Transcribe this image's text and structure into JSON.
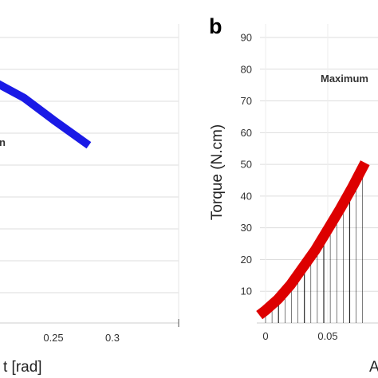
{
  "chart_data": [
    {
      "panel": "a",
      "type": "line",
      "xlabel": "t [rad]",
      "ylabel": "",
      "x_ticks": [
        "0.25",
        "0.3"
      ],
      "xlim": [
        0.0,
        0.35
      ],
      "annotation": "n",
      "grid": true,
      "series": [
        {
          "color": "#1a1ae6",
          "x": [
            0.175,
            0.2,
            0.225,
            0.25,
            0.28
          ],
          "y": [
            78.5,
            76,
            71,
            64,
            56
          ]
        }
      ]
    },
    {
      "panel": "b",
      "type": "line",
      "panel_label": "b",
      "xlabel": "A",
      "ylabel": "Torque (N.cm)",
      "x_ticks": [
        "0",
        "0.05"
      ],
      "y_ticks": [
        "10",
        "20",
        "30",
        "40",
        "50",
        "60",
        "70",
        "80",
        "90"
      ],
      "xlim": [
        -0.006,
        0.085
      ],
      "ylim": [
        0,
        95
      ],
      "annotation": "Maximum",
      "grid": true,
      "hatch_color": "#000000",
      "series": [
        {
          "color": "#dd0000",
          "x": [
            -0.005,
            0.0,
            0.01,
            0.02,
            0.03,
            0.04,
            0.05,
            0.06,
            0.07,
            0.08
          ],
          "y": [
            2.5,
            4,
            7.5,
            12,
            17.5,
            23,
            29.5,
            36,
            43,
            50.5
          ]
        }
      ]
    }
  ]
}
